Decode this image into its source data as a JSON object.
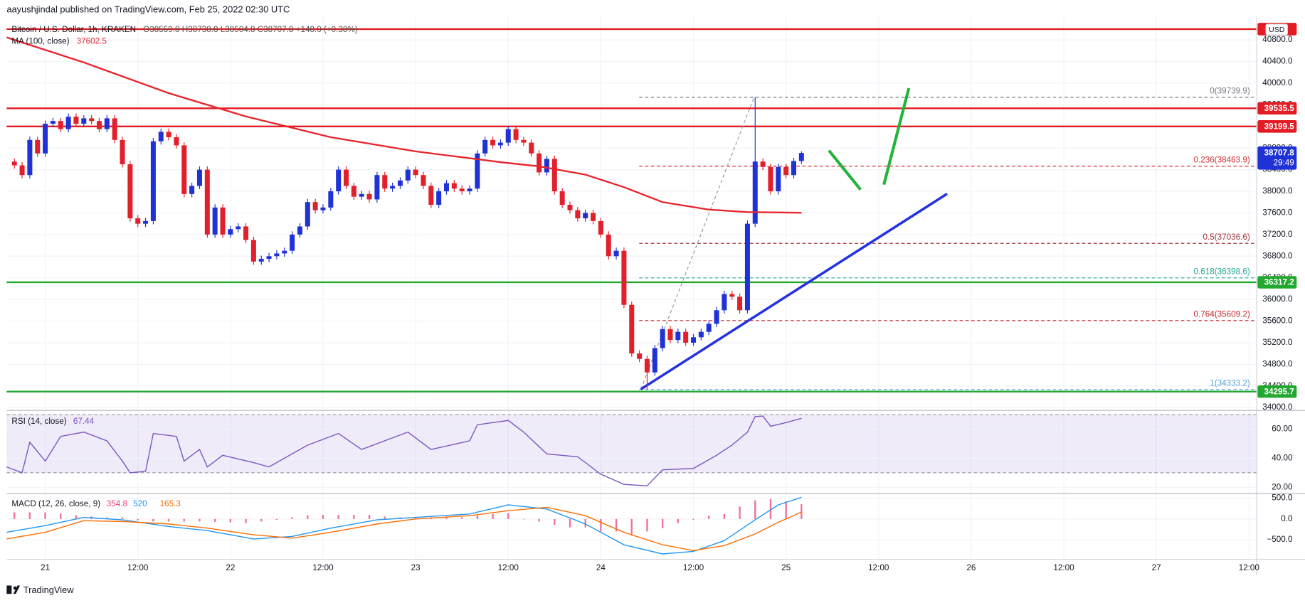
{
  "header": "aayushjindal published on TradingView.com, Feb 25, 2022 02:30 UTC",
  "footer": "TradingView",
  "chart_data": {
    "type": "candlestick",
    "title": "Bitcoin / U.S. Dollar, 1h, KRAKEN",
    "ohlc_text": "O38559.8 H38738.8 L38504.8 C38707.8 +148.0 (+0.38%)",
    "currency": "USD",
    "countdown": "29:49",
    "up_color": "#1f32d6",
    "down_color": "#e2202c",
    "grid": true,
    "xlim": [
      -3,
      159
    ],
    "xticks": [
      {
        "value": 2,
        "label": "21"
      },
      {
        "value": 14,
        "label": "12:00"
      },
      {
        "value": 26,
        "label": "22"
      },
      {
        "value": 38,
        "label": "12:00"
      },
      {
        "value": 50,
        "label": "23"
      },
      {
        "value": 62,
        "label": "12:00"
      },
      {
        "value": 74,
        "label": "24"
      },
      {
        "value": 86,
        "label": "12:00"
      },
      {
        "value": 98,
        "label": "25"
      },
      {
        "value": 110,
        "label": "12:00"
      },
      {
        "value": 122,
        "label": "26"
      },
      {
        "value": 134,
        "label": "12:00"
      },
      {
        "value": 146,
        "label": "27"
      },
      {
        "value": 158,
        "label": "12:00"
      }
    ],
    "ylim": [
      33954,
      41123
    ],
    "yticks": [
      {
        "value": 34000,
        "label": "34000.0"
      },
      {
        "value": 34400,
        "label": "34400.0"
      },
      {
        "value": 34800,
        "label": "34800.0"
      },
      {
        "value": 35200,
        "label": "35200.0"
      },
      {
        "value": 35600,
        "label": "35600.0"
      },
      {
        "value": 36000,
        "label": "36000.0"
      },
      {
        "value": 36400,
        "label": "36400.0"
      },
      {
        "value": 36800,
        "label": "36800.0"
      },
      {
        "value": 37200,
        "label": "37200.0"
      },
      {
        "value": 37600,
        "label": "37600.0"
      },
      {
        "value": 38000,
        "label": "38000.0"
      },
      {
        "value": 38400,
        "label": "38400.0"
      },
      {
        "value": 38800,
        "label": "38800.0"
      },
      {
        "value": 39200,
        "label": "39200.0"
      },
      {
        "value": 39600,
        "label": "39600.0"
      },
      {
        "value": 40000,
        "label": "40000.0"
      },
      {
        "value": 40400,
        "label": "40400.0"
      },
      {
        "value": 40800,
        "label": "40800.0"
      }
    ],
    "x": [
      -2,
      -1,
      0,
      1,
      2,
      3,
      4,
      5,
      6,
      7,
      8,
      9,
      10,
      11,
      12,
      13,
      14,
      15,
      16,
      17,
      18,
      19,
      20,
      21,
      22,
      23,
      24,
      25,
      26,
      27,
      28,
      29,
      30,
      31,
      32,
      33,
      34,
      35,
      36,
      37,
      38,
      39,
      40,
      41,
      42,
      43,
      44,
      45,
      46,
      47,
      48,
      49,
      50,
      51,
      52,
      53,
      54,
      55,
      56,
      57,
      58,
      59,
      60,
      61,
      62,
      63,
      64,
      65,
      66,
      67,
      68,
      69,
      70,
      71,
      72,
      73,
      74,
      75,
      76,
      77,
      78,
      79,
      80,
      81,
      82,
      83,
      84,
      85,
      86,
      87,
      88,
      89,
      90,
      91,
      92,
      93,
      94,
      95,
      96,
      97,
      98,
      99,
      100
    ],
    "open": [
      38550,
      38480,
      38300,
      38950,
      38700,
      39250,
      39300,
      39150,
      39380,
      39250,
      39350,
      39300,
      39150,
      39350,
      38950,
      38500,
      37500,
      37400,
      37450,
      38925,
      39100,
      39000,
      38850,
      37950,
      38100,
      38400,
      37200,
      37700,
      37200,
      37300,
      37350,
      37100,
      36700,
      36750,
      36800,
      36850,
      36900,
      37200,
      37350,
      37800,
      37650,
      37700,
      38000,
      38400,
      38100,
      37900,
      37950,
      37850,
      38300,
      38050,
      38100,
      38200,
      38400,
      38300,
      38100,
      37750,
      38000,
      38150,
      38050,
      38000,
      38050,
      38700,
      38950,
      38850,
      38900,
      39150,
      38950,
      38900,
      38700,
      38350,
      38600,
      38000,
      37750,
      37650,
      37500,
      37600,
      37450,
      37200,
      36800,
      36900,
      35900,
      35000,
      34900,
      34650,
      35100,
      35450,
      35250,
      35400,
      35200,
      35300,
      35400,
      35550,
      35800,
      36100,
      36050,
      35800,
      37400,
      38550,
      38450,
      38000,
      38450,
      38300,
      38559.8
    ],
    "high": [
      38610,
      38540,
      39010,
      39010,
      39310,
      39360,
      39360,
      39440,
      39440,
      39410,
      39410,
      39360,
      39410,
      39410,
      39010,
      38560,
      37560,
      37510,
      38985,
      39160,
      39160,
      39060,
      38910,
      38160,
      38460,
      38460,
      37760,
      37760,
      37360,
      37410,
      37410,
      37160,
      36810,
      36860,
      36910,
      36960,
      37260,
      37410,
      37860,
      37860,
      37760,
      38060,
      38460,
      38460,
      38160,
      38010,
      38010,
      38360,
      38360,
      38160,
      38260,
      38460,
      38460,
      38360,
      38160,
      38060,
      38210,
      38210,
      38110,
      38110,
      38760,
      39010,
      39010,
      38960,
      39210,
      39210,
      39010,
      38960,
      38760,
      38660,
      38660,
      38060,
      37810,
      37710,
      37660,
      37660,
      37510,
      37260,
      36960,
      36960,
      35960,
      35060,
      34960,
      35160,
      35510,
      35510,
      35460,
      35460,
      35360,
      35460,
      35610,
      35860,
      36160,
      36160,
      36110,
      37460,
      39739.9,
      38610,
      38510,
      38510,
      38510,
      38620,
      38738.8
    ],
    "low": [
      38420,
      38240,
      38240,
      38640,
      38640,
      39190,
      39090,
      39090,
      39190,
      39190,
      39240,
      39090,
      39090,
      38890,
      38440,
      37440,
      37340,
      37340,
      37390,
      38865,
      38940,
      38790,
      37890,
      37890,
      38040,
      37140,
      37140,
      37140,
      37140,
      37240,
      37040,
      36640,
      36640,
      36690,
      36740,
      36790,
      36840,
      37140,
      37290,
      37590,
      37590,
      37640,
      37940,
      38040,
      37840,
      37840,
      37790,
      37790,
      37990,
      37990,
      38040,
      38140,
      38240,
      38040,
      37690,
      37690,
      37940,
      37990,
      37940,
      37940,
      37990,
      38640,
      38790,
      38790,
      38840,
      38890,
      38840,
      38640,
      38290,
      38290,
      37940,
      37690,
      37590,
      37440,
      37440,
      37390,
      37140,
      36740,
      36740,
      35840,
      34940,
      34840,
      34333.2,
      34590,
      35040,
      35190,
      35190,
      35140,
      35140,
      35240,
      35340,
      35490,
      35740,
      35990,
      35740,
      35740,
      37340,
      38390,
      37940,
      37940,
      38240,
      38240,
      38504.8
    ],
    "close": [
      38480,
      38300,
      38950,
      38700,
      39250,
      39300,
      39150,
      39380,
      39250,
      39350,
      39300,
      39150,
      39350,
      38950,
      38500,
      37500,
      37400,
      37450,
      38925,
      39100,
      39000,
      38850,
      37950,
      38100,
      38400,
      37200,
      37700,
      37200,
      37300,
      37350,
      37100,
      36700,
      36750,
      36800,
      36850,
      36900,
      37200,
      37350,
      37800,
      37650,
      37700,
      38000,
      38400,
      38100,
      37900,
      37950,
      37850,
      38300,
      38050,
      38100,
      38200,
      38400,
      38300,
      38100,
      37750,
      38000,
      38150,
      38050,
      38000,
      38050,
      38700,
      38950,
      38850,
      38900,
      39150,
      38950,
      38900,
      38700,
      38350,
      38600,
      38000,
      37750,
      37650,
      37500,
      37600,
      37450,
      37200,
      36800,
      36900,
      35900,
      35000,
      34900,
      34650,
      35100,
      35450,
      35250,
      35400,
      35200,
      35300,
      35400,
      35550,
      35800,
      36100,
      36050,
      35800,
      37400,
      38550,
      38450,
      38000,
      38450,
      38300,
      38559.8,
      38707.8
    ],
    "ma": {
      "name": "MA (100, close)",
      "color": "#e8242c",
      "x": [
        -3,
        7,
        18,
        28,
        39,
        50,
        61,
        66,
        72,
        77,
        82,
        88,
        93,
        100
      ],
      "values": [
        40846,
        40385,
        39815,
        39385,
        39000,
        38738,
        38538,
        38462,
        38308,
        38077,
        37800,
        37662,
        37615,
        37602.5
      ]
    },
    "top_line": {
      "value": 41000,
      "color": "#e31b23"
    },
    "levels": [
      {
        "value": 39535.5,
        "color": "#e31b23"
      },
      {
        "value": 39199.5,
        "color": "#e31b23"
      },
      {
        "value": 36317.2,
        "color": "#22a72f"
      },
      {
        "value": 34295.7,
        "color": "#22a72f"
      }
    ],
    "fib": [
      {
        "label": "0(39739.9)",
        "value": 39739.9,
        "color": "#787b86"
      },
      {
        "label": "0.236(38463.9)",
        "value": 38463.9,
        "color": "#d32f2f"
      },
      {
        "label": "0.5(37036.6)",
        "value": 37036.6,
        "color": "#a5333a"
      },
      {
        "label": "0.618(36398.6)",
        "value": 36398.6,
        "color": "#26a69a"
      },
      {
        "label": "0.764(35609.2)",
        "value": 35609.2,
        "color": "#c62828"
      },
      {
        "label": "1(34333.2)",
        "value": 34333.2,
        "color": "#4fa3d9"
      }
    ],
    "rsi": {
      "name": "RSI (14, close)",
      "color": "#7e57c2",
      "band": [
        30,
        70
      ],
      "ylim": [
        16.5,
        72
      ],
      "yticks": [
        {
          "value": 20,
          "label": "20.00"
        },
        {
          "value": 40,
          "label": "40.00"
        },
        {
          "value": 60,
          "label": "60.00"
        }
      ],
      "x": [
        -3,
        -1,
        0,
        2,
        4,
        7,
        10,
        12,
        13,
        15,
        16,
        19,
        20,
        22,
        23,
        25,
        29,
        31,
        34,
        36,
        40,
        43,
        49,
        52,
        57,
        58,
        62,
        64,
        67,
        71,
        74,
        77,
        80,
        82,
        86,
        89,
        91,
        93,
        94,
        95,
        96,
        98,
        100
      ],
      "values": [
        34,
        30,
        51,
        38,
        55,
        58,
        52,
        38,
        30,
        31,
        57,
        55,
        38,
        46,
        34,
        42,
        37,
        34,
        43,
        49,
        57,
        46,
        58,
        46,
        52,
        63,
        66,
        58,
        43,
        41,
        29,
        22,
        21,
        32,
        33,
        42,
        49,
        58,
        68.6,
        69,
        62,
        64.5,
        67.44
      ]
    },
    "macd": {
      "name": "MACD (12, 26, close, 9)",
      "ylim": [
        -960,
        600
      ],
      "yticks": [
        {
          "value": 500,
          "label": "500.0"
        },
        {
          "value": 0,
          "label": "0.0"
        },
        {
          "value": -500,
          "label": "−500.0"
        }
      ],
      "hist": {
        "color": "#ec407a",
        "x": [
          -2,
          0,
          2,
          4,
          6,
          8,
          10,
          12,
          14,
          16,
          18,
          20,
          22,
          24,
          26,
          28,
          30,
          32,
          34,
          36,
          38,
          40,
          42,
          44,
          46,
          48,
          50,
          52,
          54,
          56,
          58,
          60,
          62,
          64,
          66,
          68,
          70,
          72,
          74,
          76,
          78,
          80,
          82,
          84,
          86,
          88,
          90,
          92,
          94,
          96,
          98,
          100
        ],
        "values": [
          160,
          160,
          160,
          130,
          90,
          60,
          40,
          40,
          -30,
          -60,
          -60,
          -60,
          -60,
          -70,
          -80,
          -100,
          -60,
          -20,
          40,
          90,
          100,
          100,
          100,
          100,
          60,
          40,
          40,
          40,
          40,
          40,
          80,
          120,
          140,
          0,
          -60,
          -140,
          -200,
          -200,
          -300,
          -300,
          -400,
          -300,
          -220,
          -100,
          -20,
          80,
          120,
          300,
          450,
          480,
          420,
          354.8
        ]
      },
      "macd_line": {
        "color": "#2196f3",
        "x": [
          -3,
          2,
          7,
          12,
          18,
          23,
          29,
          34,
          39,
          45,
          50,
          57,
          62,
          67,
          72,
          77,
          82,
          86,
          90,
          94,
          97,
          100
        ],
        "values": [
          -320,
          -160,
          40,
          -20,
          -180,
          -280,
          -480,
          -420,
          -220,
          -20,
          40,
          120,
          340,
          240,
          -120,
          -620,
          -840,
          -780,
          -520,
          -20,
          340,
          520
        ]
      },
      "signal": {
        "color": "#ff6d00",
        "x": [
          -3,
          2,
          7,
          12,
          18,
          23,
          29,
          34,
          39,
          45,
          50,
          57,
          62,
          67,
          72,
          77,
          82,
          86,
          90,
          94,
          97,
          100
        ],
        "values": [
          -480,
          -320,
          -40,
          -60,
          -120,
          -220,
          -380,
          -460,
          -320,
          -120,
          0,
          80,
          200,
          280,
          80,
          -320,
          -620,
          -760,
          -640,
          -360,
          -80,
          165.3
        ]
      }
    }
  }
}
